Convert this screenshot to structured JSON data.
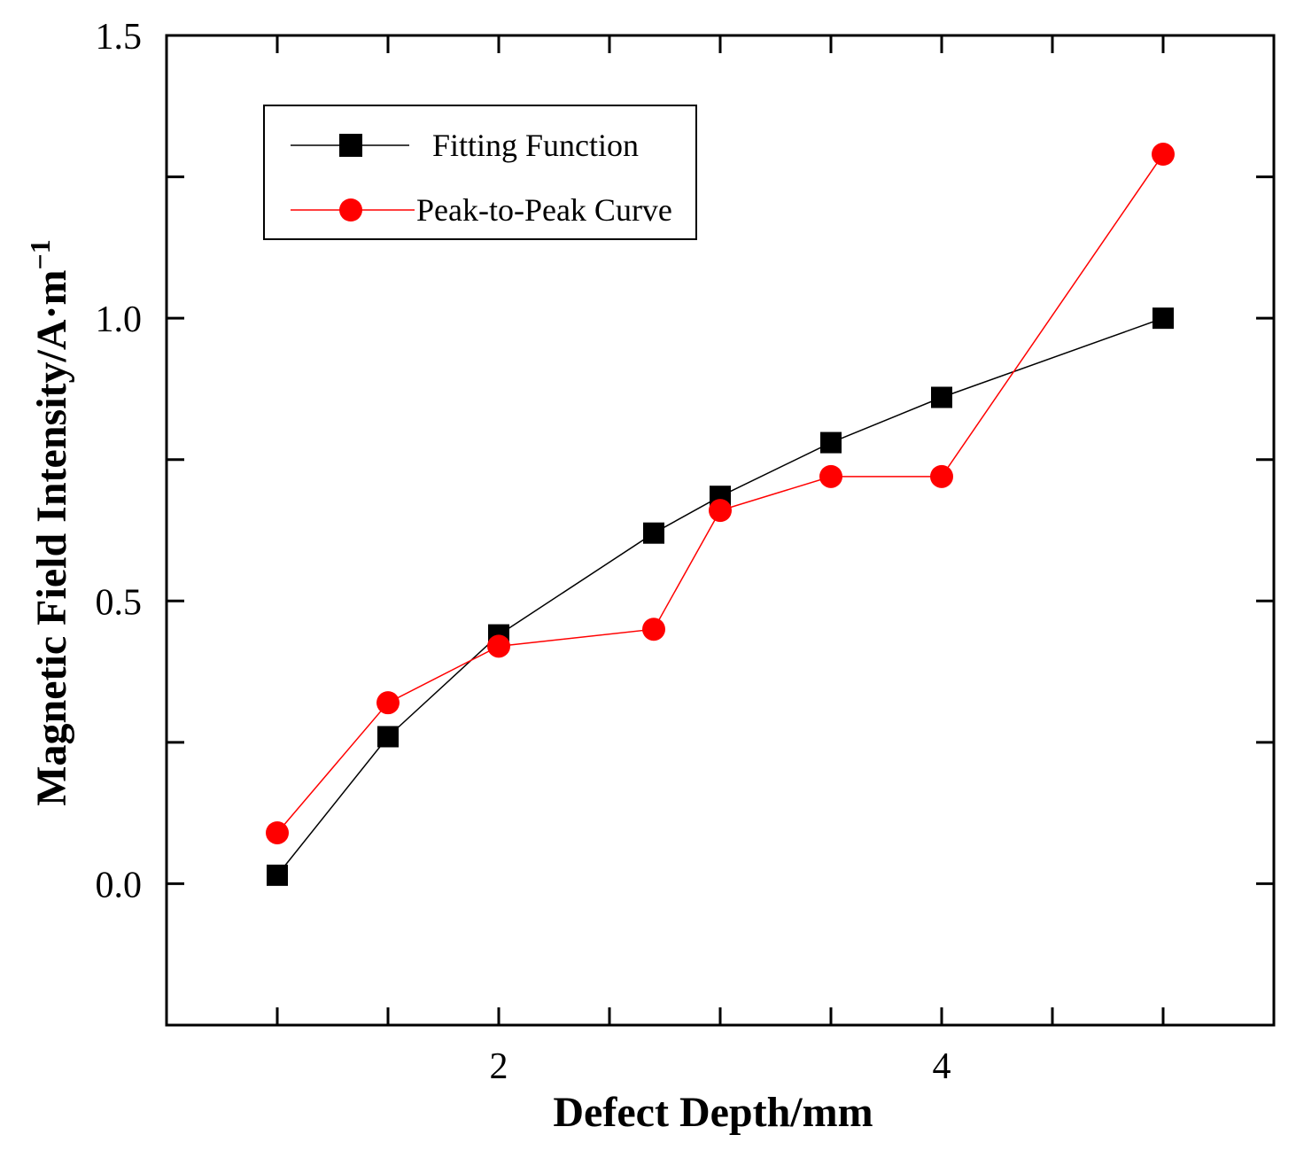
{
  "chart_data": {
    "type": "line",
    "title": "",
    "xlabel": "Defect Depth/mm",
    "ylabel": "Magnetic Field Intensity/A·m",
    "ylabel_sup": "−1",
    "xlim": [
      0.5,
      5.5
    ],
    "ylim": [
      -0.25,
      1.5
    ],
    "xticks": [
      1,
      1.5,
      2,
      2.5,
      3,
      3.5,
      4,
      4.5,
      5
    ],
    "xtick_labels": [
      {
        "value": 2,
        "label": "2"
      },
      {
        "value": 4,
        "label": "4"
      }
    ],
    "yticks": [
      -0.25,
      0.0,
      0.25,
      0.5,
      0.75,
      1.0,
      1.25,
      1.5
    ],
    "ytick_labels": [
      {
        "value": 0.0,
        "label": "0.0"
      },
      {
        "value": 0.5,
        "label": "0.5"
      },
      {
        "value": 1.0,
        "label": "1.0"
      },
      {
        "value": 1.5,
        "label": "1.5"
      }
    ],
    "grid": false,
    "legend_position": "top-left",
    "series": [
      {
        "name": "Fitting Function",
        "color": "#000000",
        "marker": "square",
        "x": [
          1,
          1.5,
          2,
          2.7,
          3,
          3.5,
          4,
          5
        ],
        "y": [
          0.015,
          0.26,
          0.44,
          0.62,
          0.685,
          0.78,
          0.86,
          1.0
        ]
      },
      {
        "name": "Peak-to-Peak Curve",
        "color": "#ff0000",
        "marker": "circle",
        "x": [
          1,
          1.5,
          2,
          2.7,
          3,
          3.5,
          4,
          5
        ],
        "y": [
          0.09,
          0.32,
          0.42,
          0.45,
          0.66,
          0.72,
          0.72,
          1.29
        ]
      }
    ]
  }
}
